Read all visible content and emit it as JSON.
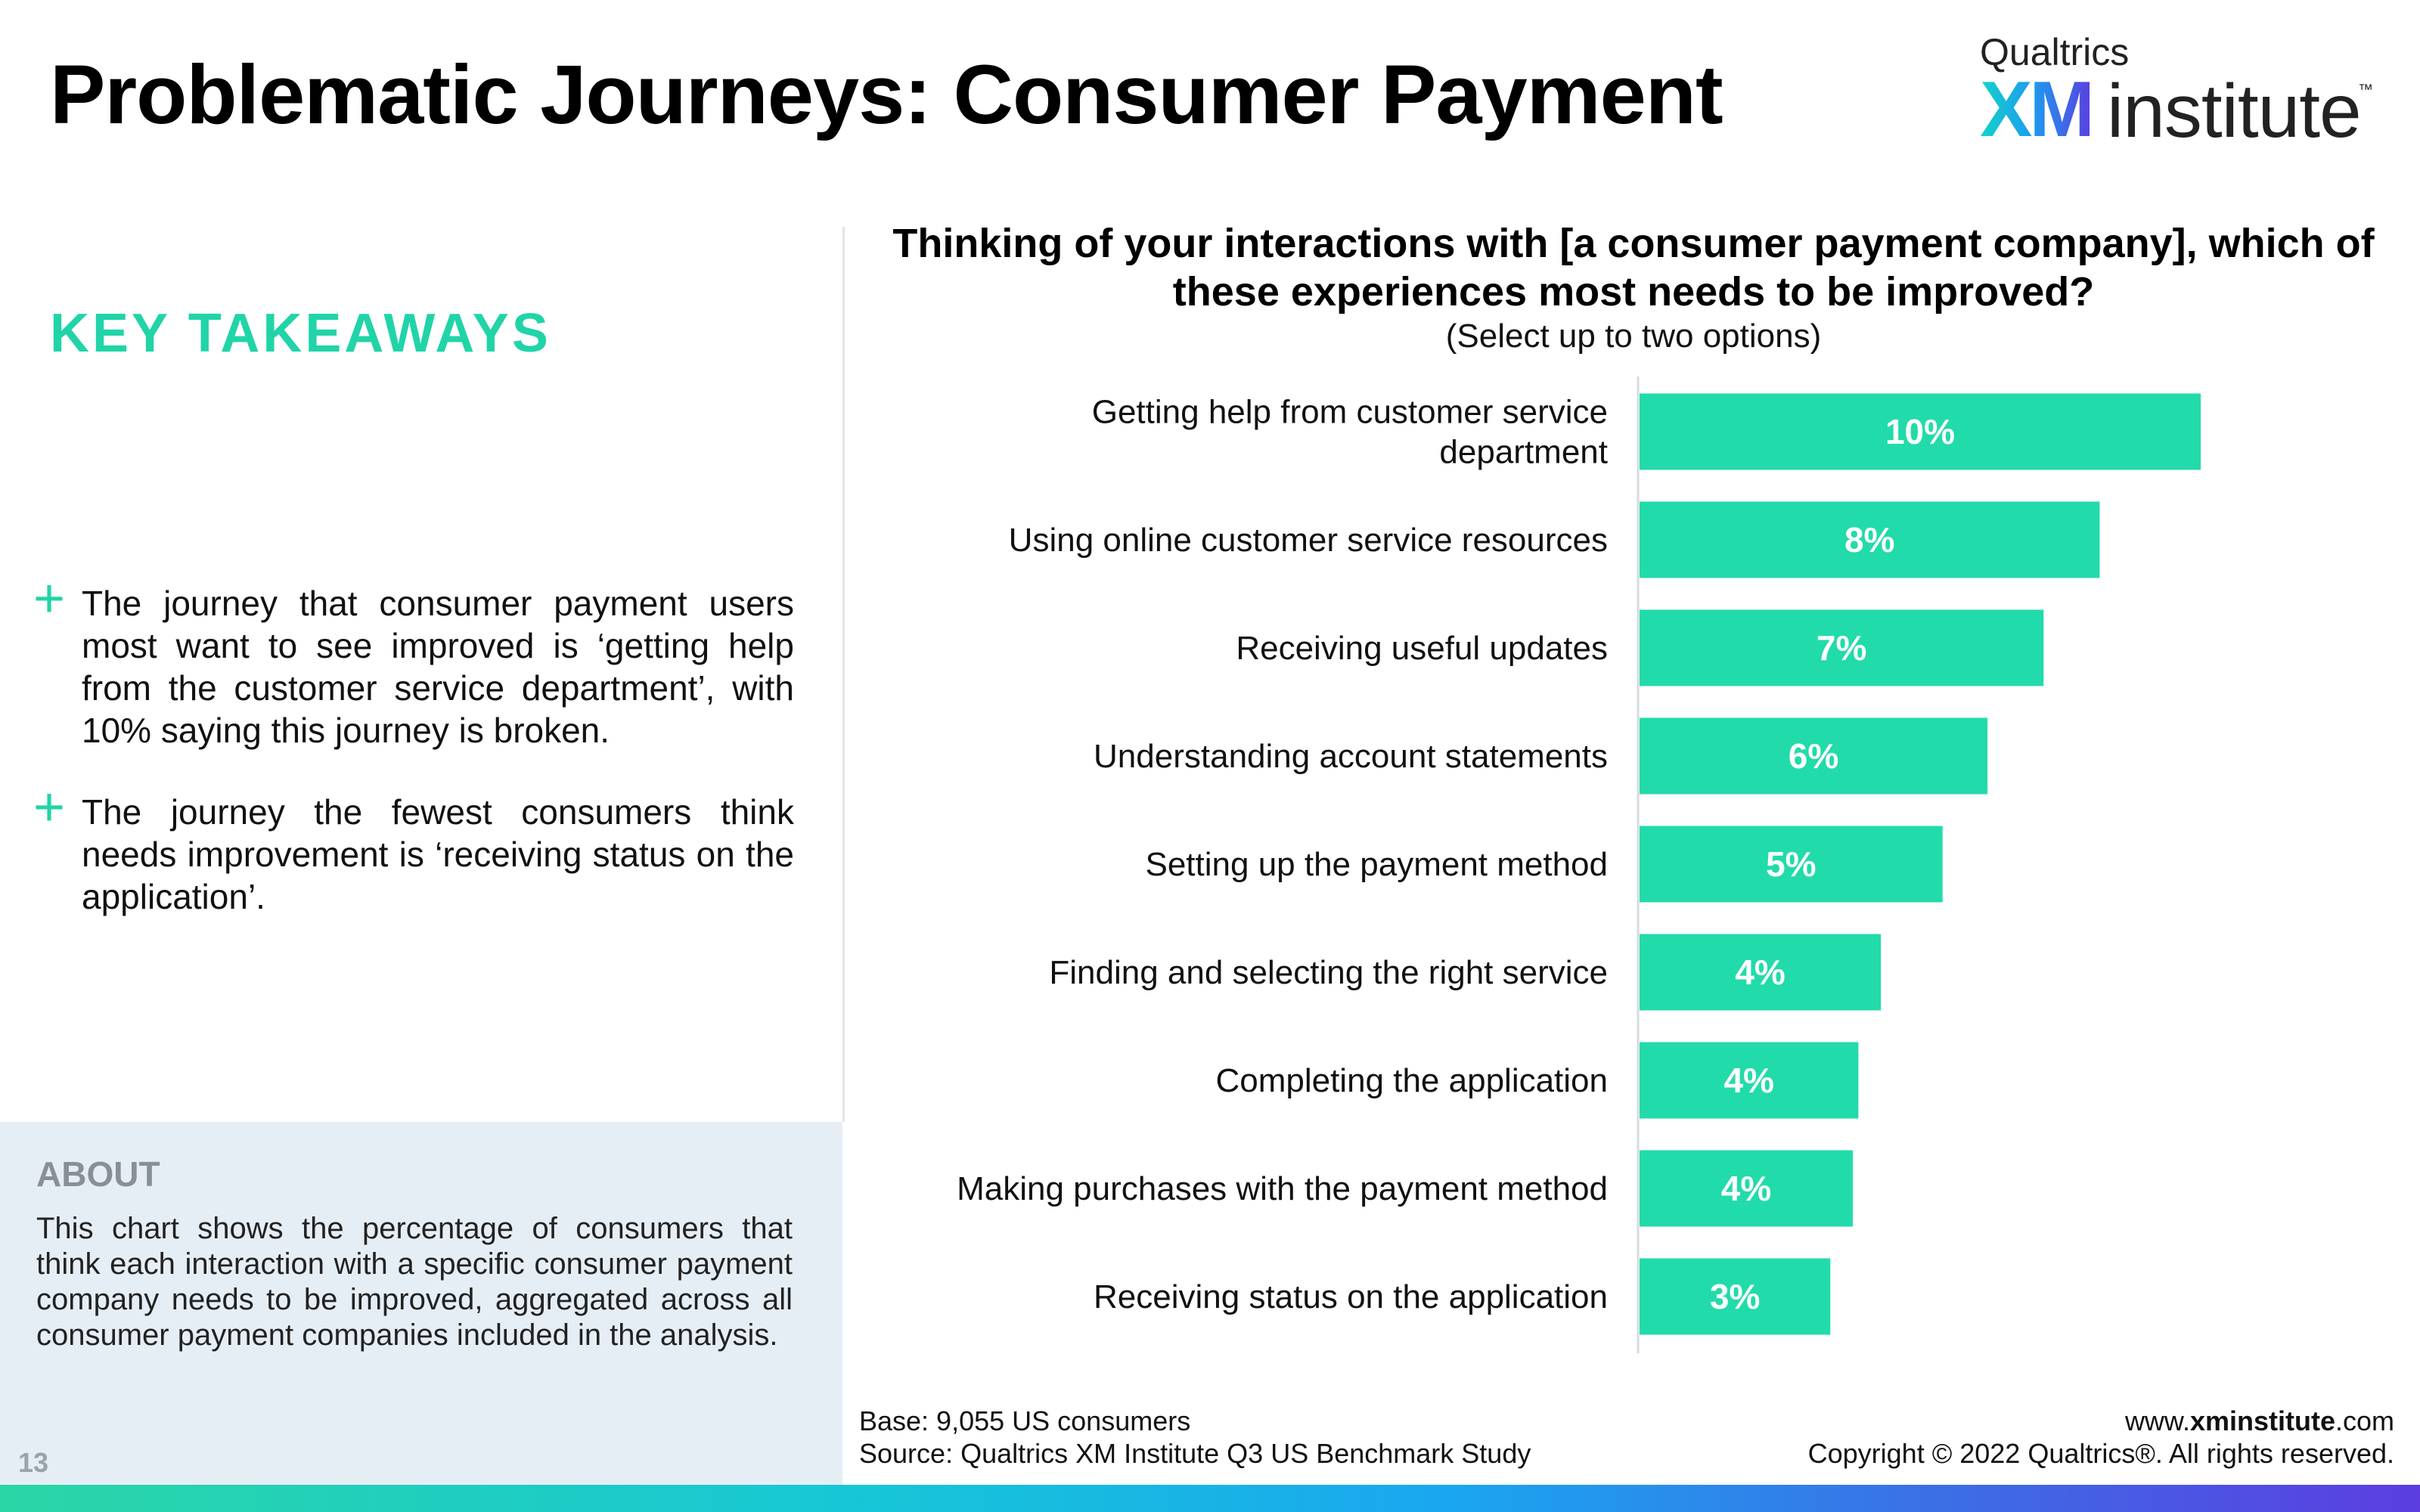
{
  "title": "Problematic Journeys: Consumer Payment",
  "logo": {
    "brand": "Qualtrics",
    "mark": "XM",
    "word": "institute",
    "tm": "™"
  },
  "takeaways": {
    "heading": "KEY TAKEAWAYS",
    "bullet_icon": "plus-icon",
    "items": [
      "The journey that consumer payment users most want to see improved is ‘getting help from the customer service department’, with 10%  saying this journey is broken.",
      "The journey the fewest consumers think needs improvement is ‘receiving status on the application’."
    ]
  },
  "about": {
    "heading": "ABOUT",
    "text": "This chart shows the percentage of consumers that think each interaction with a specific consumer payment company needs to be improved, aggregated across all consumer payment companies included in the analysis."
  },
  "page_number": "13",
  "colors": {
    "accent": "#21d4a8",
    "bar": "#22dbaa",
    "about_bg": "#e6eef5"
  },
  "chart_data": {
    "type": "bar",
    "orientation": "horizontal",
    "title": "Thinking of your interactions with [a consumer payment company], which of these experiences most needs to be improved?",
    "subtitle": "(Select up to two options)",
    "categories": [
      [
        "Getting help from customer service",
        "department"
      ],
      [
        "Using online customer service resources"
      ],
      [
        "Receiving useful updates"
      ],
      [
        "Understanding account statements"
      ],
      [
        "Setting up the payment method"
      ],
      [
        "Finding and selecting the right service"
      ],
      [
        "Completing the application"
      ],
      [
        "Making purchases with the payment method"
      ],
      [
        "Receiving status on the application"
      ]
    ],
    "values": [
      10.0,
      8.2,
      7.2,
      6.2,
      5.4,
      4.3,
      3.9,
      3.8,
      3.4
    ],
    "labels": [
      "10%",
      "8%",
      "7%",
      "6%",
      "5%",
      "4%",
      "4%",
      "4%",
      "3%"
    ],
    "xlim": [
      0,
      14
    ],
    "grid": false,
    "legend": "none"
  },
  "footer": {
    "base": "Base: 9,055 US consumers",
    "source": "Source: Qualtrics XM Institute Q3 US Benchmark Study",
    "website_prefix": "www.",
    "website_bold": "xminstitute",
    "website_suffix": ".com",
    "copyright": "Copyright © 2022 Qualtrics®. All rights reserved."
  }
}
